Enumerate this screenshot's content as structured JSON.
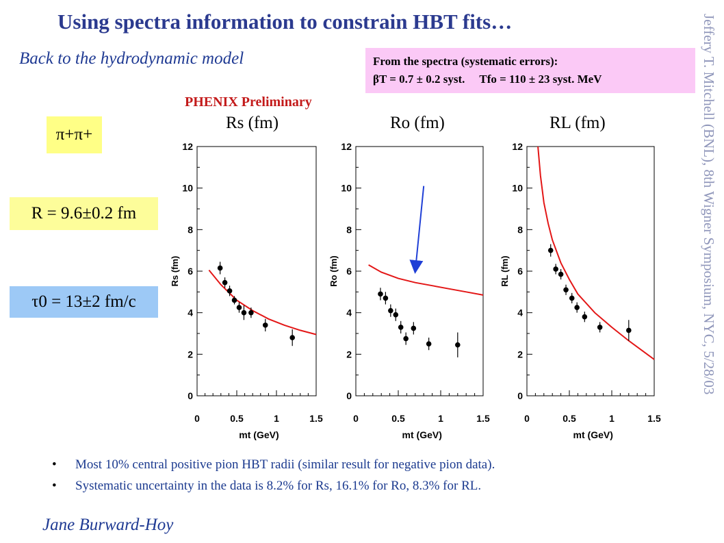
{
  "slide": {
    "title": "Using spectra information to constrain HBT fits…",
    "subtitle": "Back to the hydrodynamic model",
    "spectra_box": {
      "line1": "From the spectra (systematic errors):",
      "line2_beta": "βT = 0.7 ± 0.2 syst.",
      "line2_temp": "Tfo = 110 ± 23 syst. MeV"
    },
    "phenix_label": "PHENIX Preliminary",
    "panel_labels": {
      "rs": "Rs (fm)",
      "ro": "Ro (fm)",
      "rl": "RL (fm)"
    },
    "side_boxes": {
      "pion": "π+π+",
      "radius": "R = 9.6±0.2 fm",
      "tau": "τ0 = 13±2 fm/c"
    },
    "vertical_credit": "Jeffery T. Mitchell (BNL), 8th Wigner Symposium, NYC, 5/28/03",
    "bullets": [
      "Most 10% central positive pion HBT radii (similar result for negative pion data).",
      "Systematic uncertainty in the data is 8.2% for Rs, 16.1% for Ro, 8.3% for RL."
    ],
    "author": "Jane Burward-Hoy",
    "colors": {
      "title": "#2b3a8f",
      "phenix": "#c31a1a",
      "model_curve": "#e31616",
      "arrow": "#1f3fd6",
      "pion_box": "#ffff86",
      "radius_box": "#fdfd9a",
      "tau_box": "#9dc9f6",
      "spectra_box": "#fbc9f6"
    }
  },
  "chart_data": [
    {
      "type": "scatter",
      "panel": "Rs",
      "xlabel": "mt (GeV)",
      "ylabel": "Rs (fm)",
      "xlim": [
        0,
        1.5
      ],
      "ylim": [
        0,
        12
      ],
      "xticks": [
        "0",
        "0.5",
        "1",
        "1.5"
      ],
      "yticks": [
        "0",
        "2",
        "4",
        "6",
        "8",
        "10",
        "12"
      ],
      "points": [
        {
          "x": 0.29,
          "y": 6.15,
          "err": 0.3
        },
        {
          "x": 0.35,
          "y": 5.45,
          "err": 0.25
        },
        {
          "x": 0.41,
          "y": 5.05,
          "err": 0.25
        },
        {
          "x": 0.47,
          "y": 4.6,
          "err": 0.2
        },
        {
          "x": 0.53,
          "y": 4.25,
          "err": 0.25
        },
        {
          "x": 0.59,
          "y": 4.0,
          "err": 0.35
        },
        {
          "x": 0.68,
          "y": 4.0,
          "err": 0.25
        },
        {
          "x": 0.86,
          "y": 3.4,
          "err": 0.3
        },
        {
          "x": 1.2,
          "y": 2.8,
          "err": 0.4
        }
      ],
      "model_curve": [
        [
          0.15,
          6.05
        ],
        [
          0.3,
          5.35
        ],
        [
          0.5,
          4.6
        ],
        [
          0.7,
          4.1
        ],
        [
          0.9,
          3.7
        ],
        [
          1.1,
          3.4
        ],
        [
          1.3,
          3.15
        ],
        [
          1.5,
          2.95
        ]
      ]
    },
    {
      "type": "scatter",
      "panel": "Ro",
      "xlabel": "mt (GeV)",
      "ylabel": "Ro (fm)",
      "xlim": [
        0,
        1.5
      ],
      "ylim": [
        0,
        12
      ],
      "xticks": [
        "0",
        "0.5",
        "1",
        "1.5"
      ],
      "yticks": [
        "0",
        "2",
        "4",
        "6",
        "8",
        "10",
        "12"
      ],
      "points": [
        {
          "x": 0.29,
          "y": 4.9,
          "err": 0.3
        },
        {
          "x": 0.35,
          "y": 4.7,
          "err": 0.3
        },
        {
          "x": 0.41,
          "y": 4.1,
          "err": 0.3
        },
        {
          "x": 0.47,
          "y": 3.9,
          "err": 0.3
        },
        {
          "x": 0.53,
          "y": 3.3,
          "err": 0.3
        },
        {
          "x": 0.59,
          "y": 2.75,
          "err": 0.3
        },
        {
          "x": 0.68,
          "y": 3.25,
          "err": 0.3
        },
        {
          "x": 0.86,
          "y": 2.5,
          "err": 0.3
        },
        {
          "x": 1.2,
          "y": 2.45,
          "err": 0.6
        }
      ],
      "model_curve": [
        [
          0.15,
          6.3
        ],
        [
          0.3,
          5.95
        ],
        [
          0.5,
          5.65
        ],
        [
          0.7,
          5.45
        ],
        [
          0.9,
          5.3
        ],
        [
          1.1,
          5.15
        ],
        [
          1.3,
          5.0
        ],
        [
          1.5,
          4.85
        ]
      ],
      "arrow": {
        "from": [
          0.8,
          10.1
        ],
        "to": [
          0.7,
          6.0
        ]
      }
    },
    {
      "type": "scatter",
      "panel": "RL",
      "xlabel": "mt (GeV)",
      "ylabel": "RL (fm)",
      "xlim": [
        0,
        1.5
      ],
      "ylim": [
        0,
        12
      ],
      "xticks": [
        "0",
        "0.5",
        "1",
        "1.5"
      ],
      "yticks": [
        "0",
        "2",
        "4",
        "6",
        "8",
        "10",
        "12"
      ],
      "points": [
        {
          "x": 0.28,
          "y": 7.0,
          "err": 0.3
        },
        {
          "x": 0.34,
          "y": 6.1,
          "err": 0.25
        },
        {
          "x": 0.4,
          "y": 5.85,
          "err": 0.25
        },
        {
          "x": 0.46,
          "y": 5.1,
          "err": 0.25
        },
        {
          "x": 0.53,
          "y": 4.7,
          "err": 0.25
        },
        {
          "x": 0.59,
          "y": 4.25,
          "err": 0.25
        },
        {
          "x": 0.68,
          "y": 3.8,
          "err": 0.25
        },
        {
          "x": 0.86,
          "y": 3.3,
          "err": 0.25
        },
        {
          "x": 1.2,
          "y": 3.15,
          "err": 0.5
        }
      ],
      "model_curve": [
        [
          0.13,
          12.0
        ],
        [
          0.16,
          10.6
        ],
        [
          0.2,
          9.3
        ],
        [
          0.25,
          8.3
        ],
        [
          0.3,
          7.5
        ],
        [
          0.4,
          6.4
        ],
        [
          0.5,
          5.6
        ],
        [
          0.6,
          4.9
        ],
        [
          0.8,
          4.0
        ],
        [
          1.0,
          3.3
        ],
        [
          1.2,
          2.65
        ],
        [
          1.4,
          2.05
        ],
        [
          1.5,
          1.75
        ]
      ]
    }
  ]
}
